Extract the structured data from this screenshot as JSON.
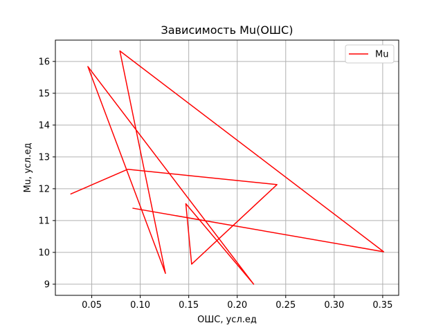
{
  "chart_data": {
    "type": "line",
    "title": "Зависимость Mu(ОШС)",
    "xlabel": "ОШС, усл.ед",
    "ylabel": "Mu, усл.ед",
    "xlim": [
      0.0125,
      0.3665
    ],
    "ylim": [
      8.65,
      16.67
    ],
    "xticks": [
      0.05,
      0.1,
      0.15,
      0.2,
      0.25,
      0.3,
      0.35
    ],
    "xtick_labels": [
      "0.05",
      "0.10",
      "0.15",
      "0.20",
      "0.25",
      "0.30",
      "0.35"
    ],
    "yticks": [
      9,
      10,
      11,
      12,
      13,
      14,
      15,
      16
    ],
    "ytick_labels": [
      "9",
      "10",
      "11",
      "12",
      "13",
      "14",
      "15",
      "16"
    ],
    "grid": true,
    "legend_position": "top-right",
    "series": [
      {
        "name": "Mu",
        "color": "#ff0000",
        "x": [
          0.028,
          0.087,
          0.241,
          0.153,
          0.147,
          0.217,
          0.046,
          0.126,
          0.079,
          0.351,
          0.092
        ],
        "y": [
          11.83,
          12.61,
          12.13,
          9.63,
          11.53,
          9.0,
          15.84,
          9.34,
          16.33,
          10.02,
          11.39
        ]
      }
    ]
  }
}
